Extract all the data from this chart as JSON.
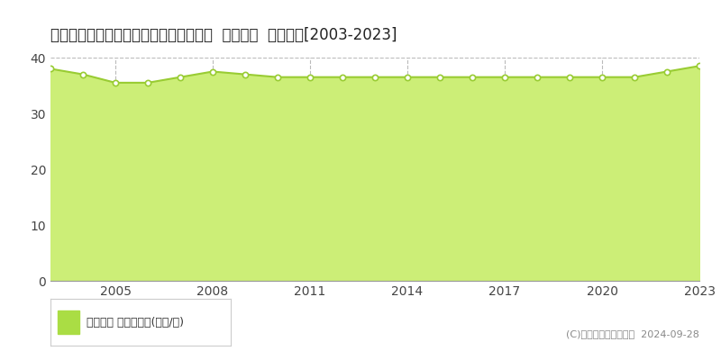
{
  "title": "愛知県豊橋市つつじが丘３丁目９番４外  基準地価  地価推移[2003-2023]",
  "years": [
    2003,
    2004,
    2005,
    2006,
    2007,
    2008,
    2009,
    2010,
    2011,
    2012,
    2013,
    2014,
    2015,
    2016,
    2017,
    2018,
    2019,
    2020,
    2021,
    2022,
    2023
  ],
  "values": [
    38.0,
    37.0,
    35.5,
    35.5,
    36.5,
    37.5,
    37.0,
    36.5,
    36.5,
    36.5,
    36.5,
    36.5,
    36.5,
    36.5,
    36.5,
    36.5,
    36.5,
    36.5,
    36.5,
    37.5,
    38.5
  ],
  "ylim": [
    0,
    40
  ],
  "yticks": [
    0,
    10,
    20,
    30,
    40
  ],
  "xticks": [
    2005,
    2008,
    2011,
    2014,
    2017,
    2020,
    2023
  ],
  "xlim": [
    2003,
    2023
  ],
  "line_color": "#99cc33",
  "fill_color": "#ccee77",
  "marker_facecolor": "#ffffff",
  "marker_edgecolor": "#99cc33",
  "grid_color": "#bbbbbb",
  "bg_color": "#ffffff",
  "plot_bg_color": "#ffffff",
  "legend_label": "基準地価 平均坪単価(万円/坪)",
  "legend_color": "#aadd44",
  "copyright_text": "(C)土地価格ドットコム  2024-09-28",
  "title_fontsize": 12,
  "axis_fontsize": 10,
  "legend_fontsize": 9,
  "copyright_fontsize": 8
}
